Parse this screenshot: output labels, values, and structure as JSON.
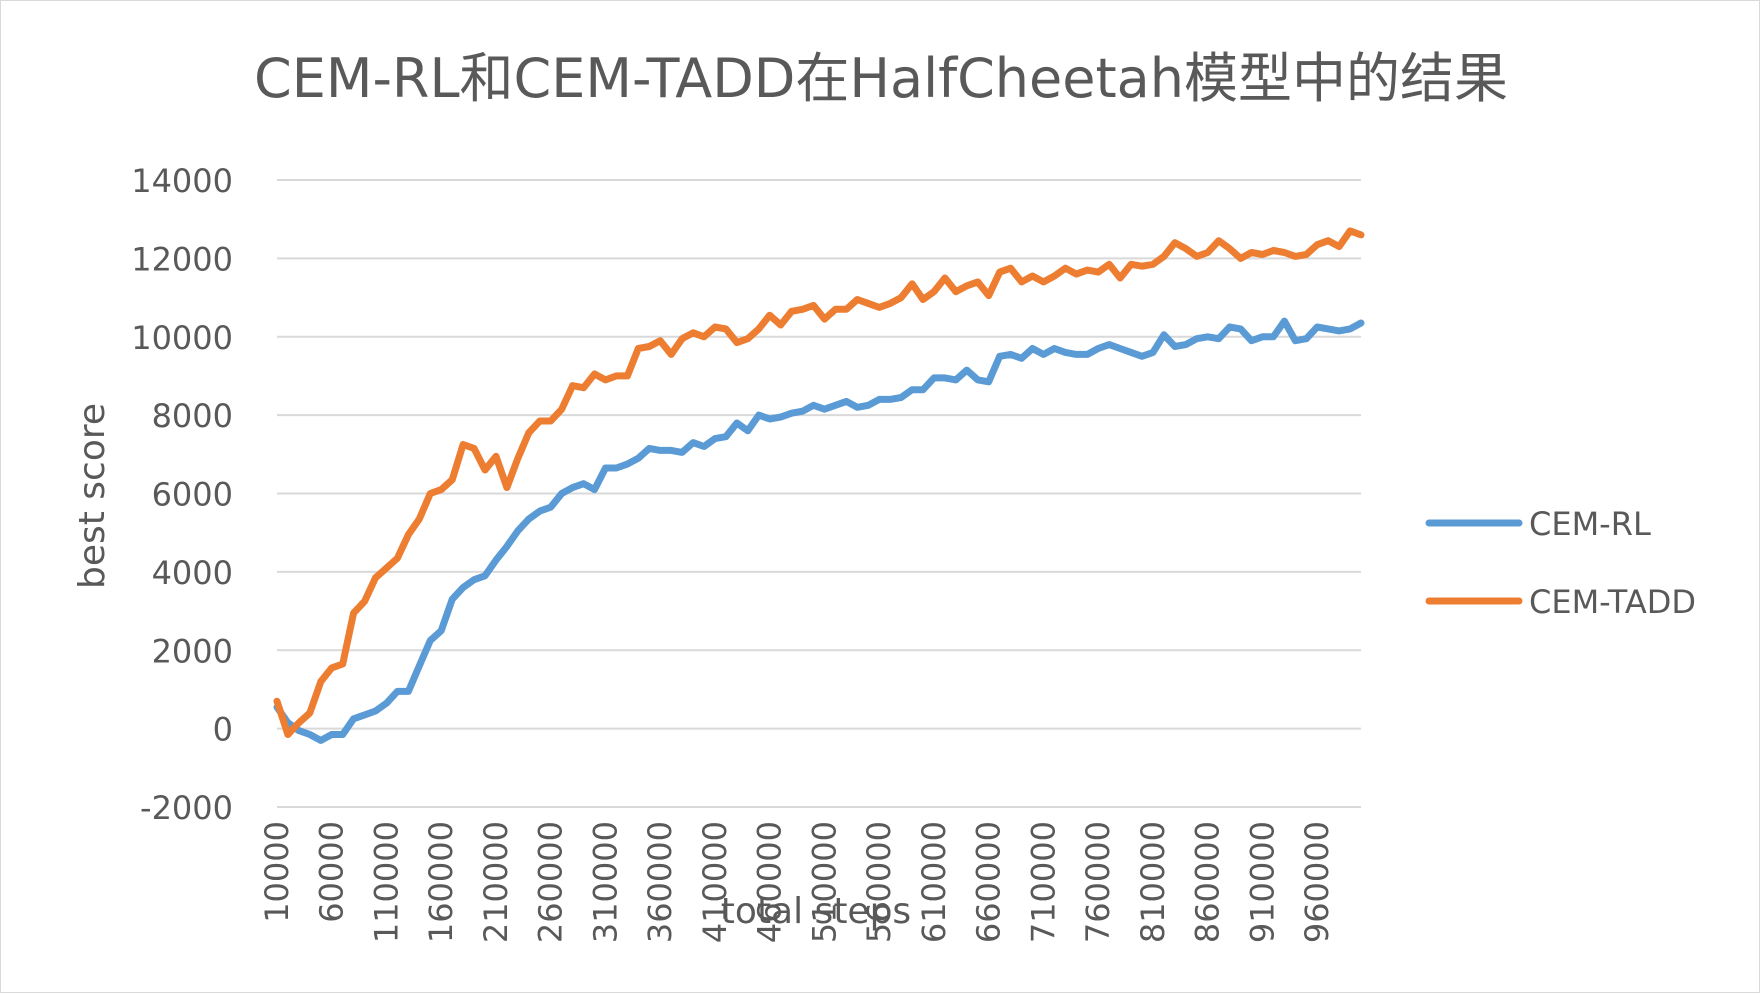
{
  "chart_data": {
    "type": "line",
    "title": "CEM-RL和CEM-TADD在HalfCheetah模型中的结果",
    "xlabel": "total steps",
    "ylabel": "best score",
    "ylim": [
      -2000,
      14000
    ],
    "yticks": [
      "-2000",
      "0",
      "2000",
      "4000",
      "6000",
      "8000",
      "10000",
      "12000",
      "14000"
    ],
    "x": [
      10000,
      20000,
      30000,
      40000,
      50000,
      60000,
      70000,
      80000,
      90000,
      100000,
      110000,
      120000,
      130000,
      140000,
      150000,
      160000,
      170000,
      180000,
      190000,
      200000,
      210000,
      220000,
      230000,
      240000,
      250000,
      260000,
      270000,
      280000,
      290000,
      300000,
      310000,
      320000,
      330000,
      340000,
      350000,
      360000,
      370000,
      380000,
      390000,
      400000,
      410000,
      420000,
      430000,
      440000,
      450000,
      460000,
      470000,
      480000,
      490000,
      500000,
      510000,
      520000,
      530000,
      540000,
      550000,
      560000,
      570000,
      580000,
      590000,
      600000,
      610000,
      620000,
      630000,
      640000,
      650000,
      660000,
      670000,
      680000,
      690000,
      700000,
      710000,
      720000,
      730000,
      740000,
      750000,
      760000,
      770000,
      780000,
      790000,
      800000,
      810000,
      820000,
      830000,
      840000,
      850000,
      860000,
      870000,
      880000,
      890000,
      900000,
      910000,
      920000,
      930000,
      940000,
      950000,
      960000,
      970000,
      980000,
      990000,
      1000000
    ],
    "xtick_labels": [
      "10000",
      "60000",
      "110000",
      "160000",
      "210000",
      "260000",
      "310000",
      "360000",
      "410000",
      "460000",
      "510000",
      "560000",
      "610000",
      "660000",
      "710000",
      "760000",
      "810000",
      "860000",
      "910000",
      "960000"
    ],
    "grid": true,
    "legend_position": "right",
    "series": [
      {
        "name": "CEM-RL",
        "color": "#5B9BD5",
        "values": [
          550,
          150,
          -50,
          -150,
          -300,
          -150,
          -150,
          250,
          350,
          450,
          650,
          950,
          950,
          1600,
          2250,
          2500,
          3300,
          3600,
          3800,
          3900,
          4300,
          4650,
          5050,
          5350,
          5550,
          5650,
          6000,
          6150,
          6250,
          6100,
          6650,
          6650,
          6750,
          6900,
          7150,
          7100,
          7100,
          7050,
          7300,
          7200,
          7400,
          7450,
          7800,
          7600,
          8000,
          7900,
          7950,
          8050,
          8100,
          8250,
          8150,
          8250,
          8350,
          8200,
          8250,
          8400,
          8400,
          8450,
          8650,
          8650,
          8950,
          8950,
          8900,
          9150,
          8900,
          8850,
          9500,
          9550,
          9450,
          9700,
          9550,
          9700,
          9600,
          9550,
          9550,
          9700,
          9800,
          9700,
          9600,
          9500,
          9600,
          10050,
          9750,
          9800,
          9950,
          10000,
          9950,
          10250,
          10200,
          9900,
          10000,
          10000,
          10400,
          9900,
          9950,
          10250,
          10200,
          10150,
          10200,
          10350
        ]
      },
      {
        "name": "CEM-TADD",
        "color": "#ED7D31",
        "values": [
          700,
          -150,
          150,
          400,
          1200,
          1550,
          1650,
          2950,
          3250,
          3850,
          4100,
          4350,
          4950,
          5350,
          6000,
          6100,
          6350,
          7250,
          7150,
          6600,
          6950,
          6150,
          6900,
          7550,
          7850,
          7850,
          8150,
          8750,
          8700,
          9050,
          8900,
          9000,
          9000,
          9700,
          9750,
          9900,
          9550,
          9950,
          10100,
          10000,
          10250,
          10200,
          9850,
          9950,
          10200,
          10550,
          10300,
          10650,
          10700,
          10800,
          10450,
          10700,
          10700,
          10950,
          10850,
          10750,
          10850,
          11000,
          11350,
          10950,
          11150,
          11500,
          11150,
          11300,
          11400,
          11050,
          11650,
          11750,
          11400,
          11550,
          11400,
          11550,
          11750,
          11600,
          11700,
          11650,
          11850,
          11500,
          11850,
          11800,
          11850,
          12050,
          12400,
          12250,
          12050,
          12150,
          12450,
          12250,
          12000,
          12150,
          12100,
          12200,
          12150,
          12050,
          12100,
          12350,
          12450,
          12300,
          12700,
          12600
        ]
      }
    ]
  }
}
